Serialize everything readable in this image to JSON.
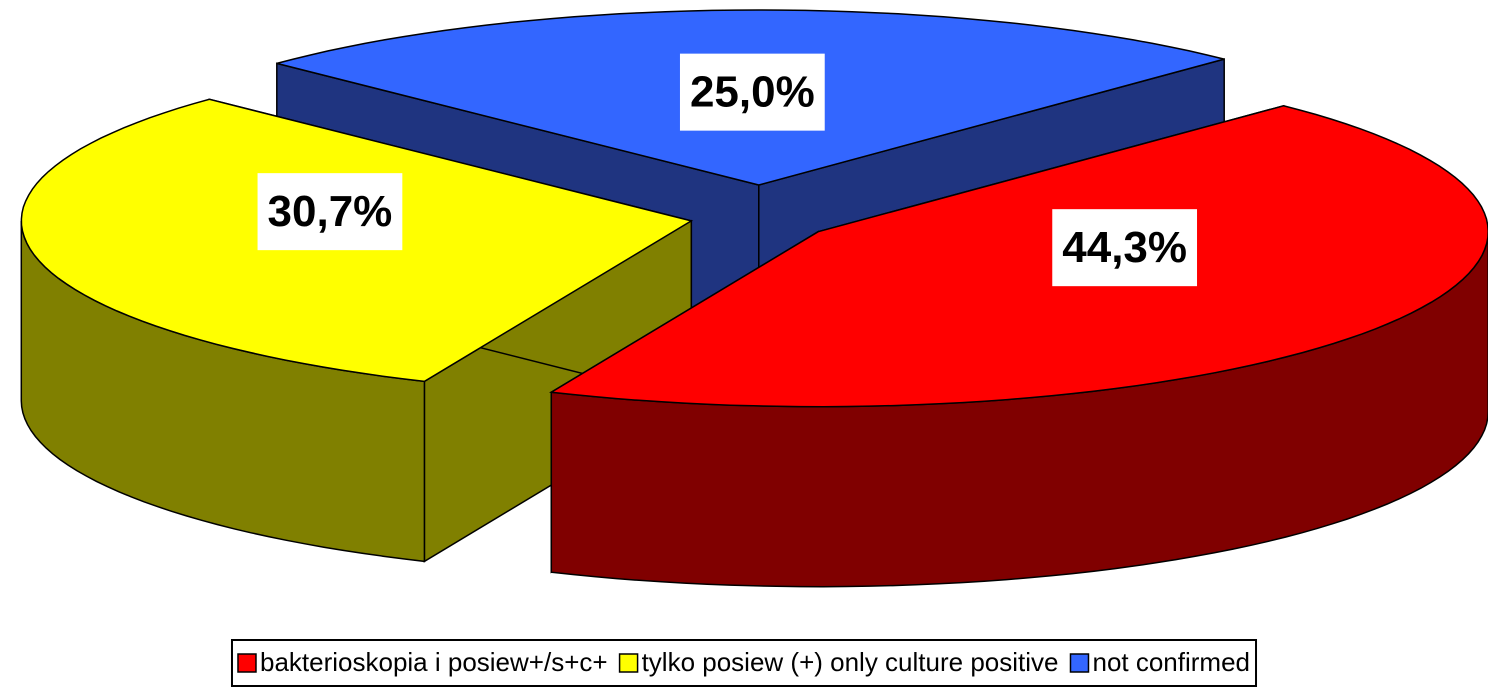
{
  "chart_data": {
    "type": "pie",
    "categories": [
      "bakterioskopia i posiew+/s+c+",
      "tylko posiew (+) only culture positive",
      "not confirmed"
    ],
    "values": [
      44.3,
      30.7,
      25.0
    ],
    "value_labels": [
      "44,3%",
      "30,7%",
      "25,0%"
    ],
    "colors": [
      "#ff0000",
      "#ffff00",
      "#3366ff"
    ],
    "side_colors": [
      "#800000",
      "#808000",
      "#1f3480"
    ],
    "legend": "bottom"
  }
}
